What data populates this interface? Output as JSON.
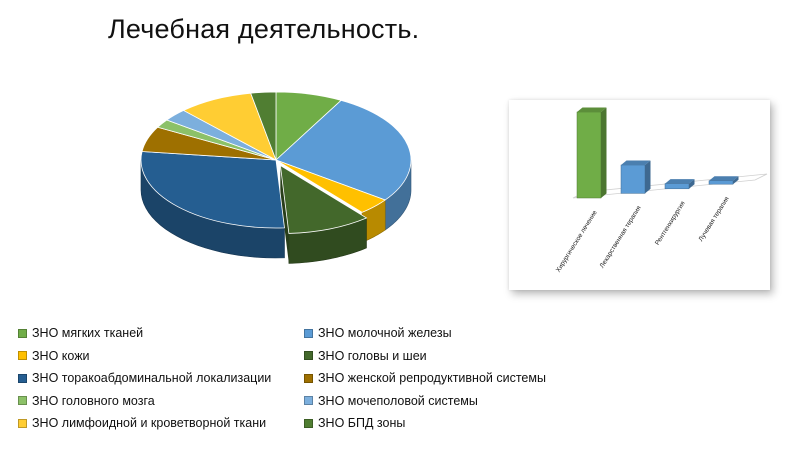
{
  "title": "Лечебная деятельность.",
  "chart_data": [
    {
      "type": "pie",
      "slices": [
        {
          "name": "ЗНО мягких тканей",
          "value": 8,
          "color": "#70ad47"
        },
        {
          "name": "ЗНО молочной железы",
          "value": 27,
          "color": "#5b9bd5"
        },
        {
          "name": "ЗНО кожи",
          "value": 4,
          "color": "#ffc000"
        },
        {
          "name": "ЗНО головы и шеи",
          "value": 10,
          "color": "#43682b"
        },
        {
          "name": "ЗНО торакоабдоминальной локализации",
          "value": 28,
          "color": "#255e91"
        },
        {
          "name": "ЗНО женской репродуктивной системы",
          "value": 6,
          "color": "#9e7000"
        },
        {
          "name": "ЗНО головного мозга",
          "value": 2,
          "color": "#8cc168"
        },
        {
          "name": "ЗНО мочеполовой системы",
          "value": 3,
          "color": "#7cafdd"
        },
        {
          "name": "ЗНО лимфоидной и кроветворной ткани",
          "value": 9,
          "color": "#ffcd33"
        },
        {
          "name": "ЗНО БПД зоны",
          "value": 3,
          "color": "#507e32"
        }
      ],
      "legend": "bottom"
    },
    {
      "type": "bar",
      "categories": [
        "Хирургическое лечение",
        "Лекарственная терапия",
        "Рентгенхирургия",
        "Лучевая терапия"
      ],
      "values": [
        100,
        33,
        6,
        4
      ],
      "colors": [
        "#70ad47",
        "#5b9bd5",
        "#5b9bd5",
        "#5b9bd5"
      ],
      "grid": false,
      "legend": "none"
    }
  ]
}
